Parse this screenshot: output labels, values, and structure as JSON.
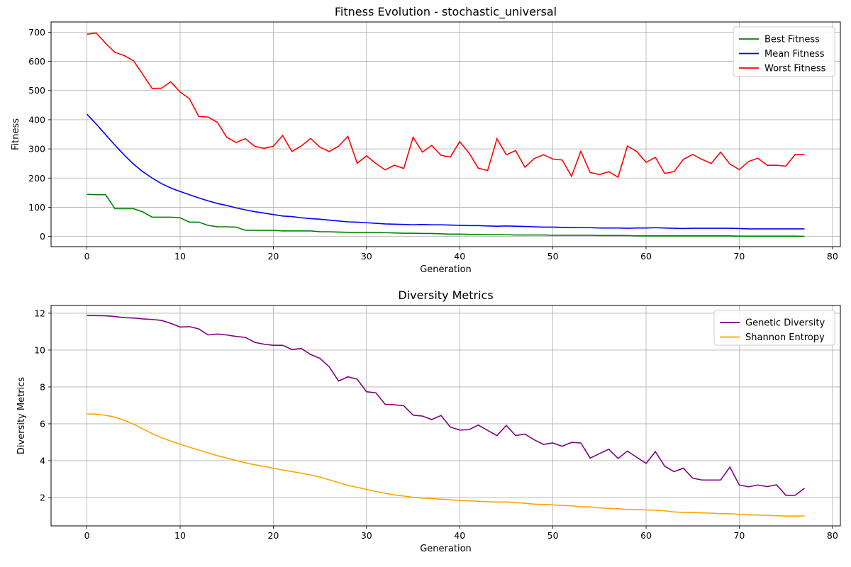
{
  "chart_data": [
    {
      "type": "line",
      "title": "Fitness Evolution - stochastic_universal",
      "xlabel": "Generation",
      "ylabel": "Fitness",
      "xlim": [
        -3.85,
        80.85
      ],
      "ylim": [
        -35,
        735
      ],
      "xticks": [
        0,
        10,
        20,
        30,
        40,
        50,
        60,
        70,
        80
      ],
      "yticks": [
        0,
        100,
        200,
        300,
        400,
        500,
        600,
        700
      ],
      "grid": true,
      "legend_position": "top-right",
      "series": [
        {
          "name": "Best Fitness",
          "color": "#008000",
          "values": [
            144,
            143,
            143,
            95,
            95,
            95,
            84,
            66,
            66,
            66,
            64,
            49,
            49,
            38,
            33,
            33,
            32,
            21,
            21,
            21,
            21,
            19,
            19,
            19,
            19,
            16,
            16,
            15,
            14,
            14,
            14,
            14,
            13,
            12,
            11,
            11,
            10,
            10,
            9,
            8,
            8,
            7,
            7,
            6,
            6,
            6,
            5,
            5,
            5,
            5,
            4,
            4,
            4,
            4,
            4,
            3,
            3,
            3,
            3,
            2,
            2,
            2,
            2,
            2,
            2,
            2,
            2,
            2,
            2,
            2,
            1,
            1,
            1,
            1,
            1,
            1,
            1,
            0
          ]
        },
        {
          "name": "Mean Fitness",
          "color": "#0000ff",
          "values": [
            419,
            385,
            349,
            313,
            279,
            248,
            222,
            200,
            181,
            166,
            154,
            143,
            132,
            122,
            113,
            106,
            98,
            91,
            85,
            80,
            75,
            70,
            68,
            64,
            61,
            59,
            56,
            53,
            50,
            49,
            47,
            45,
            43,
            42,
            41,
            40,
            41,
            40,
            40,
            39,
            38,
            37,
            37,
            36,
            35,
            36,
            35,
            34,
            33,
            32,
            32,
            31,
            31,
            30,
            30,
            29,
            29,
            29,
            28,
            29,
            29,
            30,
            29,
            28,
            27,
            28,
            28,
            28,
            28,
            28,
            27,
            26,
            26,
            26,
            26,
            26,
            26,
            26
          ]
        },
        {
          "name": "Worst Fitness",
          "color": "#ff0000",
          "values": [
            693,
            697,
            662,
            631,
            620,
            602,
            555,
            507,
            508,
            530,
            495,
            472,
            411,
            409,
            391,
            340,
            322,
            335,
            309,
            302,
            309,
            346,
            291,
            310,
            336,
            306,
            291,
            309,
            343,
            251,
            276,
            250,
            228,
            244,
            233,
            340,
            289,
            312,
            278,
            272,
            325,
            286,
            234,
            226,
            335,
            280,
            294,
            237,
            267,
            280,
            265,
            262,
            206,
            292,
            219,
            212,
            222,
            203,
            310,
            291,
            254,
            271,
            216,
            222,
            264,
            281,
            264,
            250,
            289,
            248,
            229,
            257,
            268,
            244,
            244,
            241,
            281,
            281
          ]
        }
      ]
    },
    {
      "type": "line",
      "title": "Diversity Metrics",
      "xlabel": "Generation",
      "ylabel": "Diversity Metrics",
      "xlim": [
        -3.85,
        80.85
      ],
      "ylim": [
        0.46,
        12.42
      ],
      "xticks": [
        0,
        10,
        20,
        30,
        40,
        50,
        60,
        70,
        80
      ],
      "yticks": [
        2,
        4,
        6,
        8,
        10,
        12
      ],
      "grid": true,
      "legend_position": "top-right",
      "series": [
        {
          "name": "Genetic Diversity",
          "color": "#800080",
          "values": [
            11.88,
            11.87,
            11.86,
            11.82,
            11.76,
            11.74,
            11.69,
            11.66,
            11.61,
            11.45,
            11.25,
            11.27,
            11.15,
            10.82,
            10.87,
            10.82,
            10.74,
            10.69,
            10.42,
            10.32,
            10.26,
            10.26,
            10.03,
            10.09,
            9.76,
            9.55,
            9.09,
            8.32,
            8.55,
            8.42,
            7.74,
            7.68,
            7.06,
            7.03,
            6.98,
            6.47,
            6.42,
            6.23,
            6.45,
            5.82,
            5.66,
            5.68,
            5.93,
            5.64,
            5.36,
            5.91,
            5.36,
            5.44,
            5.13,
            4.88,
            4.96,
            4.78,
            4.99,
            4.96,
            4.14,
            4.38,
            4.62,
            4.12,
            4.52,
            4.18,
            3.85,
            4.49,
            3.7,
            3.4,
            3.59,
            3.05,
            2.95,
            2.95,
            2.95,
            3.65,
            2.68,
            2.58,
            2.68,
            2.59,
            2.69,
            2.12,
            2.12,
            2.5
          ]
        },
        {
          "name": "Shannon Entropy",
          "color": "#ffa500",
          "values": [
            6.54,
            6.52,
            6.46,
            6.36,
            6.19,
            5.98,
            5.72,
            5.47,
            5.25,
            5.06,
            4.89,
            4.73,
            4.58,
            4.42,
            4.27,
            4.14,
            4.01,
            3.88,
            3.78,
            3.69,
            3.59,
            3.49,
            3.41,
            3.32,
            3.22,
            3.11,
            2.96,
            2.81,
            2.66,
            2.55,
            2.44,
            2.33,
            2.23,
            2.14,
            2.08,
            2.01,
            1.97,
            1.94,
            1.91,
            1.87,
            1.84,
            1.82,
            1.8,
            1.77,
            1.75,
            1.76,
            1.73,
            1.69,
            1.64,
            1.62,
            1.6,
            1.57,
            1.55,
            1.5,
            1.49,
            1.44,
            1.41,
            1.39,
            1.35,
            1.35,
            1.33,
            1.31,
            1.28,
            1.22,
            1.19,
            1.19,
            1.17,
            1.15,
            1.12,
            1.12,
            1.09,
            1.06,
            1.05,
            1.03,
            1.01,
            0.99,
            0.99,
            1.0
          ]
        }
      ]
    }
  ]
}
